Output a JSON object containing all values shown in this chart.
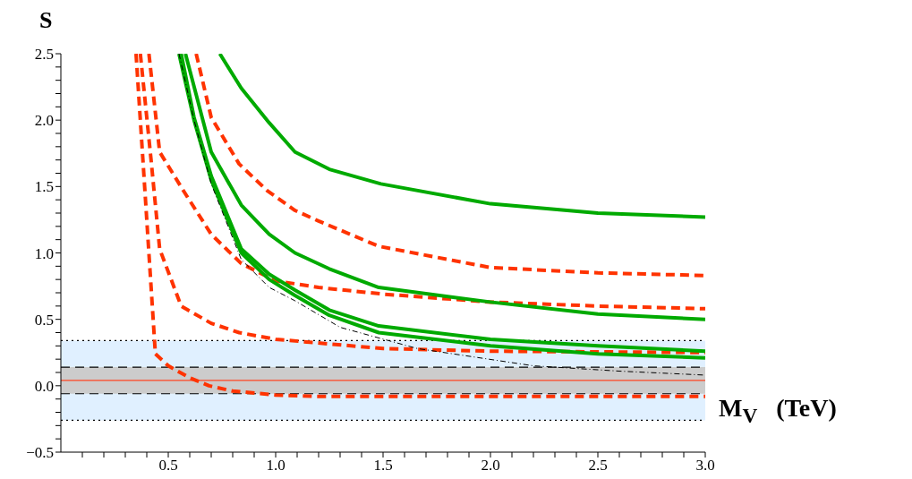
{
  "chart_data": {
    "type": "line",
    "ylabel": "S",
    "xlabel": "M$_{V}$   (TeV)",
    "xlim": [
      0,
      3
    ],
    "ylim": [
      -0.5,
      2.5
    ],
    "xticks": [
      {
        "value": 0.1,
        "label": null
      },
      {
        "value": 0.2,
        "label": null
      },
      {
        "value": 0.3,
        "label": null
      },
      {
        "value": 0.4,
        "label": null
      },
      {
        "value": 0.5,
        "label": "0.5"
      },
      {
        "value": 0.6,
        "label": null
      },
      {
        "value": 0.7,
        "label": null
      },
      {
        "value": 0.8,
        "label": null
      },
      {
        "value": 0.9,
        "label": null
      },
      {
        "value": 1,
        "label": "1.0"
      },
      {
        "value": 1.1,
        "label": null
      },
      {
        "value": 1.2,
        "label": null
      },
      {
        "value": 1.3,
        "label": null
      },
      {
        "value": 1.4,
        "label": null
      },
      {
        "value": 1.5,
        "label": "1.5"
      },
      {
        "value": 1.6,
        "label": null
      },
      {
        "value": 1.7,
        "label": null
      },
      {
        "value": 1.8,
        "label": null
      },
      {
        "value": 1.9,
        "label": null
      },
      {
        "value": 2,
        "label": "2.0"
      },
      {
        "value": 2.1,
        "label": null
      },
      {
        "value": 2.2,
        "label": null
      },
      {
        "value": 2.3,
        "label": null
      },
      {
        "value": 2.4,
        "label": null
      },
      {
        "value": 2.5,
        "label": "2.5"
      },
      {
        "value": 2.6,
        "label": null
      },
      {
        "value": 2.7,
        "label": null
      },
      {
        "value": 2.8,
        "label": null
      },
      {
        "value": 2.9,
        "label": null
      },
      {
        "value": 3,
        "label": "3.0"
      }
    ],
    "yticks": [
      {
        "value": -0.5,
        "label": "−0.5"
      },
      {
        "value": -0.4,
        "label": null
      },
      {
        "value": -0.3,
        "label": null
      },
      {
        "value": -0.2,
        "label": null
      },
      {
        "value": -0.1,
        "label": null
      },
      {
        "value": 0,
        "label": "0.0"
      },
      {
        "value": 0.1,
        "label": null
      },
      {
        "value": 0.2,
        "label": null
      },
      {
        "value": 0.3,
        "label": null
      },
      {
        "value": 0.4,
        "label": null
      },
      {
        "value": 0.5,
        "label": "0.5"
      },
      {
        "value": 0.6,
        "label": null
      },
      {
        "value": 0.7,
        "label": null
      },
      {
        "value": 0.8,
        "label": null
      },
      {
        "value": 0.9,
        "label": null
      },
      {
        "value": 1,
        "label": "1.0"
      },
      {
        "value": 1.1,
        "label": null
      },
      {
        "value": 1.2,
        "label": null
      },
      {
        "value": 1.3,
        "label": null
      },
      {
        "value": 1.4,
        "label": null
      },
      {
        "value": 1.5,
        "label": "1.5"
      },
      {
        "value": 1.6,
        "label": null
      },
      {
        "value": 1.7,
        "label": null
      },
      {
        "value": 1.8,
        "label": null
      },
      {
        "value": 1.9,
        "label": null
      },
      {
        "value": 2,
        "label": "2.0"
      },
      {
        "value": 2.1,
        "label": null
      },
      {
        "value": 2.2,
        "label": null
      },
      {
        "value": 2.3,
        "label": null
      },
      {
        "value": 2.4,
        "label": null
      },
      {
        "value": 2.5,
        "label": "2.5"
      }
    ],
    "marker": "none",
    "bands": [
      {
        "axis": "y",
        "from": -0.26,
        "to": 0.34,
        "color": "#e0f0ff"
      },
      {
        "axis": "y",
        "from": -0.06,
        "to": 0.14,
        "color": "#cccccc"
      }
    ],
    "ref_lines": [
      {
        "axis": "y",
        "value": 0.34,
        "color": "#000000",
        "line_style": "dotted"
      },
      {
        "axis": "y",
        "value": -0.26,
        "color": "#000000",
        "line_style": "dotted"
      },
      {
        "axis": "y",
        "value": 0.14,
        "color": "#000000",
        "line_style": "dashed"
      },
      {
        "axis": "y",
        "value": -0.06,
        "color": "#000000",
        "line_style": "dashed"
      },
      {
        "axis": "y",
        "value": 0.04,
        "color": "#ff4422",
        "line_style": "solid"
      }
    ],
    "series": [
      {
        "color": "#ff3300",
        "line_style": "dashed",
        "x": [
          0.35,
          0.39,
          0.44,
          0.5,
          0.6,
          0.69,
          0.8,
          1.0,
          1.2,
          1.5,
          2.0,
          2.5,
          3.0
        ],
        "values": [
          2.5,
          1.5,
          0.24,
          0.15,
          0.06,
          0.0,
          -0.04,
          -0.07,
          -0.08,
          -0.08,
          -0.08,
          -0.08,
          -0.08
        ]
      },
      {
        "color": "#ff3300",
        "line_style": "dashed",
        "x": [
          0.37,
          0.42,
          0.46,
          0.56,
          0.7,
          0.83,
          1.0,
          1.5,
          2.0,
          3.0
        ],
        "values": [
          2.5,
          1.7,
          1.03,
          0.6,
          0.47,
          0.4,
          0.35,
          0.28,
          0.26,
          0.25
        ]
      },
      {
        "color": "#ff3300",
        "line_style": "dashed",
        "x": [
          0.41,
          0.46,
          0.57,
          0.7,
          0.84,
          1.0,
          1.2,
          1.5,
          2.0,
          2.5,
          3.0
        ],
        "values": [
          2.5,
          1.76,
          1.47,
          1.14,
          0.92,
          0.79,
          0.74,
          0.69,
          0.63,
          0.6,
          0.58
        ]
      },
      {
        "color": "#ff3300",
        "line_style": "dashed",
        "x": [
          0.63,
          0.7,
          0.83,
          0.96,
          1.09,
          1.2,
          1.48,
          2.0,
          2.5,
          3.0
        ],
        "values": [
          2.5,
          2.02,
          1.67,
          1.47,
          1.32,
          1.24,
          1.05,
          0.89,
          0.85,
          0.83
        ]
      },
      {
        "color": "#00aa00",
        "line_style": "solid",
        "x": [
          0.74,
          0.84,
          0.97,
          1.09,
          1.25,
          1.49,
          2.0,
          2.5,
          3.0
        ],
        "values": [
          2.5,
          2.24,
          1.98,
          1.76,
          1.63,
          1.52,
          1.37,
          1.3,
          1.27
        ]
      },
      {
        "color": "#00aa00",
        "line_style": "solid",
        "x": [
          0.58,
          0.7,
          0.84,
          0.97,
          1.09,
          1.25,
          1.48,
          2.0,
          2.5,
          3.0
        ],
        "values": [
          2.5,
          1.76,
          1.36,
          1.14,
          1.0,
          0.88,
          0.74,
          0.63,
          0.54,
          0.5
        ]
      },
      {
        "color": "#00aa00",
        "line_style": "solid",
        "x": [
          0.56,
          0.62,
          0.7,
          0.84,
          0.97,
          1.09,
          1.25,
          1.48,
          2.0,
          2.5,
          3.0
        ],
        "values": [
          2.5,
          2.02,
          1.58,
          1.03,
          0.84,
          0.72,
          0.57,
          0.45,
          0.35,
          0.3,
          0.26
        ]
      },
      {
        "color": "#00aa00",
        "line_style": "solid",
        "x": [
          0.55,
          0.62,
          0.7,
          0.84,
          0.97,
          1.09,
          1.25,
          1.48,
          2.0,
          2.5,
          3.0
        ],
        "values": [
          2.5,
          2.0,
          1.55,
          1.0,
          0.8,
          0.68,
          0.53,
          0.4,
          0.3,
          0.24,
          0.21
        ]
      },
      {
        "color": "#000000",
        "line_style": "dashed",
        "x": [
          0.55,
          0.62,
          0.7,
          0.84,
          0.97,
          1.09,
          1.3,
          1.66,
          2.2,
          2.6,
          3.0
        ],
        "values": [
          2.5,
          2.0,
          1.52,
          0.95,
          0.74,
          0.64,
          0.44,
          0.28,
          0.15,
          0.11,
          0.08
        ]
      }
    ]
  }
}
